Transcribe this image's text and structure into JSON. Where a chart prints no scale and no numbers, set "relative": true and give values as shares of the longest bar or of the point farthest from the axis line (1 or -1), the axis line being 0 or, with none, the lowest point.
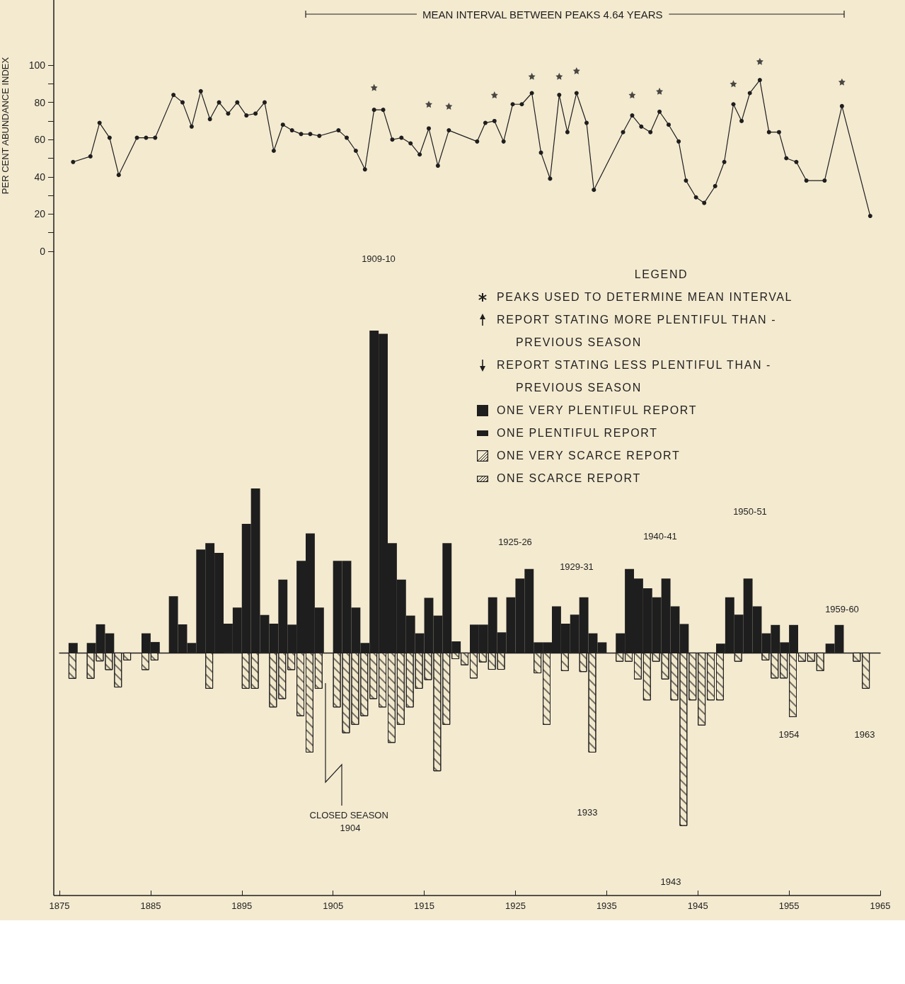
{
  "chart_data": [
    {
      "type": "line",
      "ylabel": "PER CENT ABUNDANCE INDEX",
      "annotations": [
        "MEAN INTERVAL BETWEEN PEAKS 4.64 YEARS"
      ],
      "xlim": [
        1875,
        1965
      ],
      "ylim": [
        0,
        135
      ],
      "yticks": [
        0,
        {
          "value": 10,
          "label": null
        },
        20,
        {
          "value": 30,
          "label": null
        },
        40,
        {
          "value": 50,
          "label": null
        },
        60,
        {
          "value": 70,
          "label": null
        },
        80,
        {
          "value": 90,
          "label": null
        },
        100
      ],
      "tick_labels": "y",
      "marker": "circle",
      "grid": false,
      "x": [
        1876.5,
        1878.4,
        1879.4,
        1880.5,
        1881.5,
        1883.5,
        1884.5,
        1885.5,
        1887.5,
        1888.5,
        1889.5,
        1890.5,
        1891.5,
        1892.5,
        1893.5,
        1894.5,
        1895.5,
        1896.5,
        1897.5,
        1898.5,
        1899.5,
        1900.5,
        1901.5,
        1902.5,
        1903.5,
        1905.6,
        1906.5,
        1907.5,
        1908.5,
        1909.5,
        1910.5,
        1911.5,
        1912.5,
        1913.5,
        1914.5,
        1915.5,
        1916.5,
        1917.7,
        1920.8,
        1921.7,
        1922.7,
        1923.7,
        1924.7,
        1925.7,
        1926.8,
        1927.8,
        1928.8,
        1929.8,
        1930.7,
        1931.7,
        1932.8,
        1933.6,
        1936.8,
        1937.8,
        1938.8,
        1939.8,
        1940.8,
        1941.8,
        1942.9,
        1943.7,
        1944.8,
        1945.7,
        1946.9,
        1947.9,
        1948.9,
        1949.8,
        1950.7,
        1951.8,
        1952.8,
        1953.9,
        1954.7,
        1955.8,
        1956.9,
        1958.9,
        1960.8,
        1963.9
      ],
      "series": [
        {
          "color": "#1e1e1e",
          "values": [
            48,
            51,
            69,
            61,
            41,
            61,
            61,
            61,
            84,
            80,
            67,
            86,
            71,
            80,
            74,
            80,
            73,
            74,
            80,
            54,
            68,
            65,
            63,
            63,
            62,
            65,
            61,
            54,
            44,
            76,
            76,
            60,
            61,
            58,
            52,
            66,
            46,
            65,
            59,
            69,
            70,
            59,
            79,
            79,
            85,
            53,
            39,
            84,
            64,
            85,
            69,
            33,
            64,
            73,
            67,
            64,
            75,
            68,
            59,
            38,
            29,
            26,
            35,
            48,
            79,
            70,
            85,
            92,
            64,
            64,
            50,
            48,
            38,
            38,
            78,
            19
          ]
        },
        {
          "type": "scatter",
          "marker": "star",
          "color": "#1e1e1e",
          "x": [
            1909.5,
            1915.5,
            1917.7,
            1922.7,
            1926.8,
            1929.8,
            1931.7,
            1937.8,
            1940.8,
            1948.9,
            1951.8,
            1960.8
          ],
          "values": [
            88,
            79,
            78,
            84,
            94,
            94,
            97,
            84,
            86,
            90,
            102,
            91
          ]
        }
      ]
    },
    {
      "type": "bar",
      "relative": true,
      "xlim": [
        1875,
        1965
      ],
      "xticks": [
        1875,
        1885,
        1895,
        1905,
        1915,
        1925,
        1935,
        1945,
        1955,
        1965
      ],
      "tick_labels": "x",
      "legend_title": "LEGEND",
      "annotations": [
        "1909-10",
        "1925-26",
        "1929-31",
        "1940-41",
        "1950-51",
        "1959-60",
        "1954",
        "1963",
        "1933",
        "1943",
        "CLOSED SEASON 1904",
        "PEAKS USED TO DETERMINE MEAN INTERVAL",
        "REPORT STATING MORE PLENTIFUL THAN - PREVIOUS SEASON",
        "REPORT STATING LESS PLENTIFUL THAN - PREVIOUS SEASON",
        "ONE VERY PLENTIFUL REPORT",
        "ONE PLENTIFUL REPORT",
        "ONE VERY SCARCE REPORT",
        "ONE SCARCE REPORT"
      ],
      "x": [
        1876.5,
        1877.5,
        1878.5,
        1879.5,
        1880.5,
        1881.5,
        1882.5,
        1883.5,
        1884.5,
        1885.5,
        1886.5,
        1887.5,
        1888.5,
        1889.5,
        1890.5,
        1891.5,
        1892.5,
        1893.5,
        1894.5,
        1895.5,
        1896.5,
        1897.5,
        1898.5,
        1899.5,
        1900.5,
        1901.5,
        1902.5,
        1903.5,
        1904.5,
        1905.5,
        1906.5,
        1907.5,
        1908.5,
        1909.5,
        1910.5,
        1911.5,
        1912.5,
        1913.5,
        1914.5,
        1915.5,
        1916.5,
        1917.5,
        1918.5,
        1919.5,
        1920.5,
        1921.5,
        1922.5,
        1923.5,
        1924.5,
        1925.5,
        1926.5,
        1927.5,
        1928.5,
        1929.5,
        1930.5,
        1931.5,
        1932.5,
        1933.5,
        1934.5,
        1935.5,
        1936.5,
        1937.5,
        1938.5,
        1939.5,
        1940.5,
        1941.5,
        1942.5,
        1943.5,
        1944.5,
        1945.5,
        1946.5,
        1947.5,
        1948.5,
        1949.5,
        1950.5,
        1951.5,
        1952.5,
        1953.5,
        1954.5,
        1955.5,
        1956.5,
        1957.5,
        1958.5,
        1959.5,
        1960.5,
        1961.5,
        1962.5,
        1963.5
      ],
      "series": [
        {
          "color": "#f2e8cc",
          "values": [
            -0.081,
            null,
            -0.081,
            -0.027,
            -0.054,
            -0.108,
            -0.024,
            null,
            -0.054,
            -0.024,
            null,
            null,
            null,
            null,
            null,
            -0.112,
            null,
            null,
            null,
            -0.112,
            -0.112,
            null,
            -0.17,
            -0.144,
            -0.054,
            -0.197,
            -0.31,
            -0.112,
            null,
            -0.17,
            -0.25,
            -0.224,
            -0.197,
            -0.144,
            -0.17,
            -0.28,
            -0.224,
            -0.17,
            -0.112,
            -0.085,
            -0.368,
            -0.224,
            -0.02,
            -0.039,
            -0.08,
            -0.03,
            -0.053,
            -0.053,
            null,
            null,
            null,
            -0.064,
            -0.224,
            null,
            -0.057,
            null,
            -0.06,
            -0.31,
            null,
            null,
            -0.028,
            -0.028,
            -0.083,
            -0.148,
            -0.028,
            -0.083,
            -0.148,
            -0.538,
            -0.148,
            -0.226,
            -0.148,
            -0.148,
            null,
            -0.028,
            null,
            null,
            -0.024,
            -0.08,
            -0.08,
            -0.2,
            -0.028,
            -0.028,
            -0.057,
            null,
            null,
            null,
            -0.028,
            -0.112
          ]
        },
        {
          "color": "#1e1e1e",
          "values": [
            0.03,
            null,
            0.03,
            0.088,
            0.06,
            null,
            null,
            null,
            0.06,
            0.033,
            null,
            0.175,
            0.088,
            0.03,
            0.32,
            0.34,
            0.31,
            0.09,
            0.14,
            0.4,
            0.51,
            0.117,
            0.09,
            0.227,
            0.087,
            0.285,
            0.37,
            0.14,
            null,
            0.285,
            0.285,
            0.14,
            0.03,
            1,
            0.99,
            0.34,
            0.227,
            0.115,
            0.06,
            0.17,
            0.115,
            0.34,
            0.035,
            null,
            0.087,
            0.087,
            0.172,
            0.063,
            0.172,
            0.23,
            0.26,
            0.032,
            0.032,
            0.144,
            0.09,
            0.118,
            0.172,
            0.06,
            0.032,
            null,
            0.06,
            0.26,
            0.23,
            0.2,
            0.172,
            0.23,
            0.144,
            0.089,
            null,
            null,
            null,
            0.028,
            0.172,
            0.118,
            0.23,
            0.144,
            0.06,
            0.086,
            0.032,
            0.086,
            null,
            null,
            null,
            0.028,
            0.086,
            null,
            null,
            null
          ]
        }
      ]
    }
  ]
}
